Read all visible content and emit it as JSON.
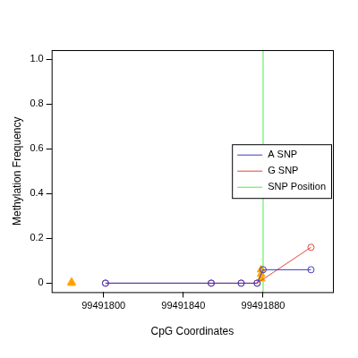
{
  "chart_data": {
    "type": "line",
    "x_label": "CpG Coordinates",
    "y_label": "Methylation Frequency",
    "xlim": [
      99491774,
      99491915
    ],
    "xticks": [
      99491800,
      99491840,
      99491880
    ],
    "ylim": [
      -0.04,
      1.04
    ],
    "yticks": [
      0.0,
      0.2,
      0.4,
      0.6,
      0.8,
      {
        "value": 1.0,
        "label": "1.0"
      }
    ],
    "grid": false,
    "legend": "right",
    "series": [
      {
        "name": "A SNP",
        "color": "#3b3bc4",
        "type": "line",
        "marker": "circle",
        "x": [
          99491801,
          99491854,
          99491869,
          99491877,
          99491880,
          99491904
        ],
        "values": [
          0,
          0,
          0,
          0,
          0.06,
          0.06
        ]
      },
      {
        "name": "G SNP",
        "color": "#e0463c",
        "type": "line",
        "marker": "circle",
        "x": [
          99491801,
          99491854,
          99491869,
          99491877,
          99491904
        ],
        "values": [
          0,
          0,
          0,
          0,
          0.16
        ]
      },
      {
        "color": "#ffa500",
        "type": "scatter",
        "marker": "triangle",
        "x": [
          99491784,
          99491784,
          99491879,
          99491879,
          99491879
        ],
        "values": [
          0,
          0.005,
          0.06,
          0.04,
          0.02
        ]
      },
      {
        "name": "SNP Position",
        "color": "#44ee44",
        "type": "line",
        "marker": "none",
        "x": [
          99491880,
          99491880
        ],
        "values": [
          -0.04,
          1.04
        ]
      }
    ]
  }
}
